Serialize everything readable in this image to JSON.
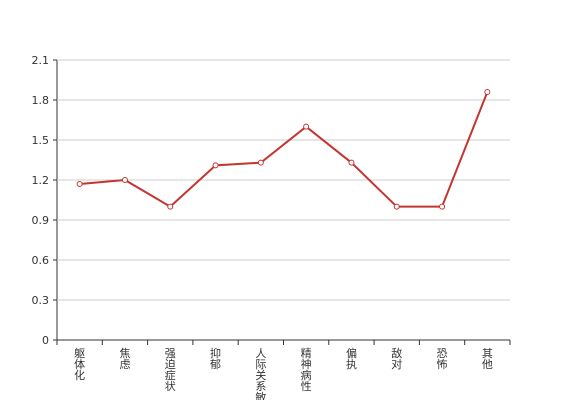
{
  "chart_data": {
    "type": "line",
    "categories": [
      "躯体化",
      "焦虑",
      "强迫症状",
      "抑郁",
      "人际关系敏感",
      "精神病性",
      "偏执",
      "敌对",
      "恐怖",
      "其他"
    ],
    "values": [
      1.17,
      1.2,
      1.0,
      1.31,
      1.33,
      1.6,
      1.33,
      1.0,
      1.0,
      1.86
    ],
    "color": "#c23531",
    "ylim": [
      0,
      2.1
    ],
    "yticks": [
      0,
      0.3,
      0.6,
      0.9,
      1.2,
      1.5,
      1.8,
      2.1
    ],
    "grid": true
  }
}
